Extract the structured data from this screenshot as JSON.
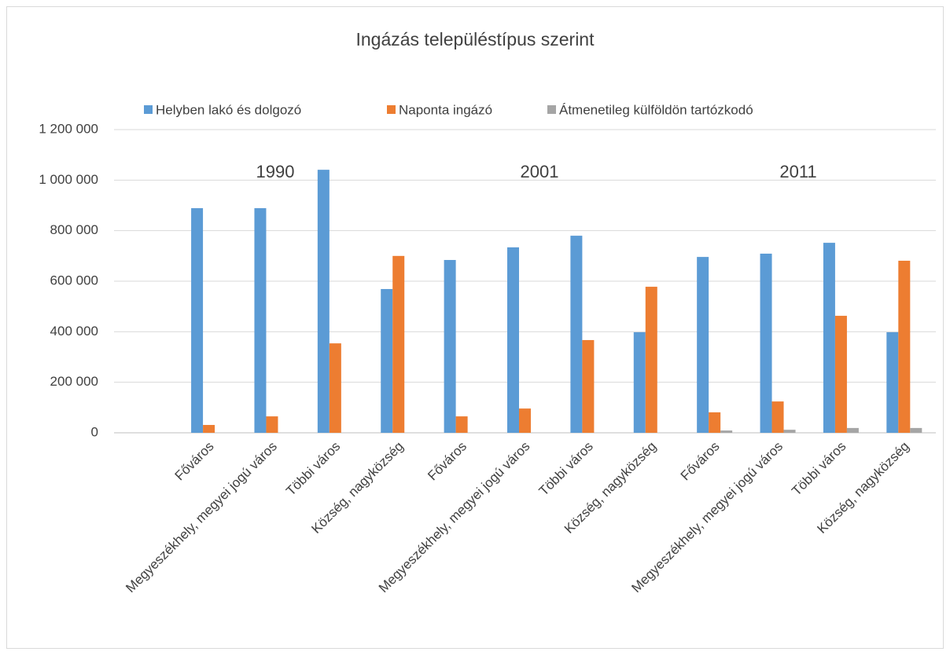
{
  "chart_data": {
    "type": "bar",
    "title": "Ingázás településtípus szerint",
    "categories": [
      null,
      "Főváros",
      "Megyeszékhely, megyei jogú város",
      "Többi város",
      "Község, nagyközség",
      "Főváros",
      "Megyeszékhely, megyei jogú város",
      "Többi város",
      "Község, nagyközség",
      "Főváros",
      "Megyeszékhely, megyei jogú város",
      "Többi város",
      "Község, nagyközség"
    ],
    "series": [
      {
        "name": "Helyben lakó és dolgozó",
        "color": "#5b9bd5",
        "values": [
          null,
          889000,
          889000,
          1041000,
          569000,
          684000,
          734000,
          780000,
          398000,
          696000,
          709000,
          752000,
          398000
        ]
      },
      {
        "name": "Naponta ingázó",
        "color": "#ed7d31",
        "values": [
          null,
          31000,
          65000,
          354000,
          700000,
          65000,
          96000,
          367000,
          578000,
          81000,
          124000,
          463000,
          681000
        ]
      },
      {
        "name": "Átmenetileg külföldön tartózkodó",
        "color": "#a5a5a5",
        "values": [
          null,
          null,
          null,
          null,
          null,
          null,
          null,
          null,
          null,
          9000,
          12000,
          19000,
          19000
        ]
      }
    ],
    "annotations": [
      "1990",
      "2001",
      "2011"
    ],
    "ylim": [
      0,
      1200000
    ],
    "yticks": [
      0,
      {
        "value": 200000,
        "label": "200 000"
      },
      {
        "value": 400000,
        "label": "400 000"
      },
      {
        "value": 600000,
        "label": "600 000"
      },
      {
        "value": 800000,
        "label": "800 000"
      },
      {
        "value": 1000000,
        "label": "1 000 000"
      },
      {
        "value": 1200000,
        "label": "1 200 000"
      }
    ],
    "grid": true,
    "legend": "top"
  }
}
